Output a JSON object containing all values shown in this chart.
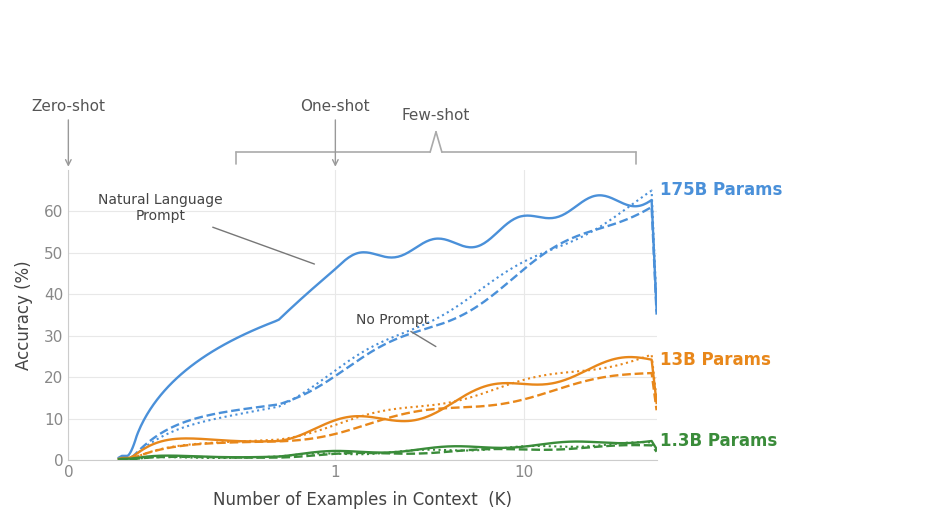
{
  "xlabel": "Number of Examples in Context  (K)",
  "ylabel": "Accuracy (%)",
  "background_color": "#ffffff",
  "grid_color": "#e8e8e8",
  "colors": {
    "blue": "#4a90d9",
    "orange": "#e8871a",
    "green": "#3a8c3a"
  },
  "label_175B": "175B Params",
  "label_13B": "13B Params",
  "label_1B": "1.3B Params",
  "annotation_nlp": "Natural Language\nPrompt",
  "annotation_noprompt": "No Prompt",
  "zero_shot_label": "Zero-shot",
  "one_shot_label": "One-shot",
  "few_shot_label": "Few-shot",
  "ylim": [
    0,
    70
  ],
  "yticks": [
    0,
    10,
    20,
    30,
    40,
    50,
    60
  ]
}
